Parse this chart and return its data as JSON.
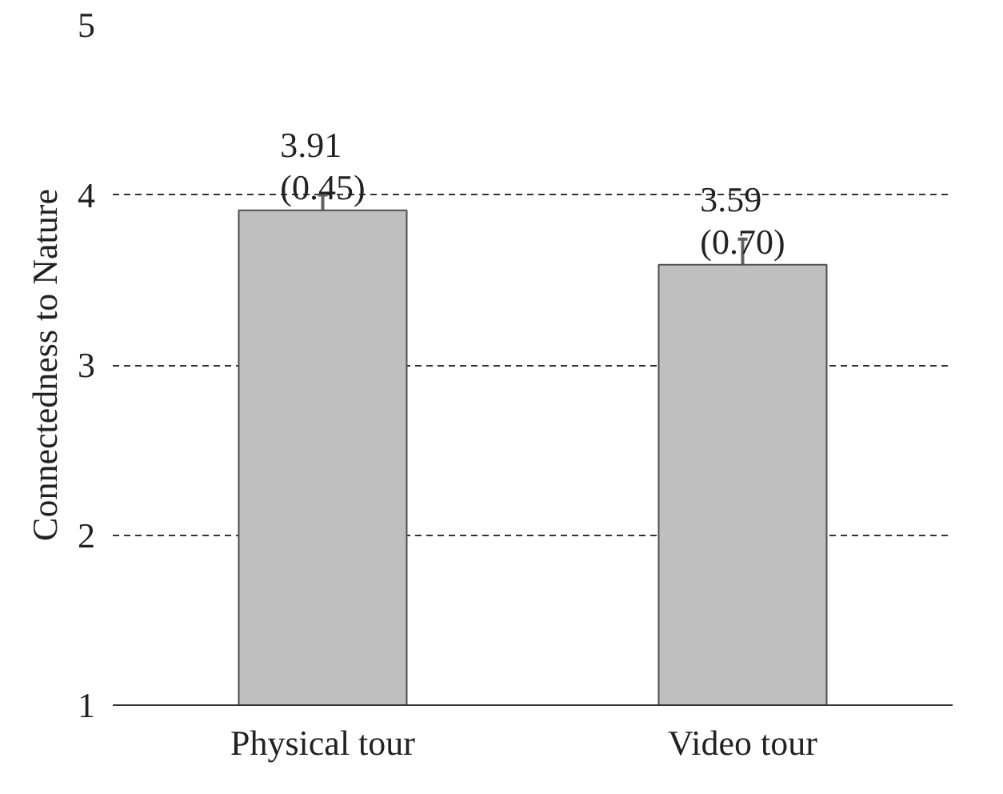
{
  "chart_data": {
    "type": "bar",
    "ylabel": "Connectedness to Nature",
    "categories": [
      "Physical tour",
      "Video tour"
    ],
    "values": [
      3.91,
      3.59
    ],
    "value_labels": [
      "3.91\n(0.45)",
      "3.59\n(0.70)"
    ],
    "errors": [
      0.09,
      0.15
    ],
    "color": "#bfbfbf",
    "ylim": [
      1,
      5
    ],
    "yticks": [
      1,
      2,
      3,
      4,
      5
    ],
    "grid": "y"
  }
}
